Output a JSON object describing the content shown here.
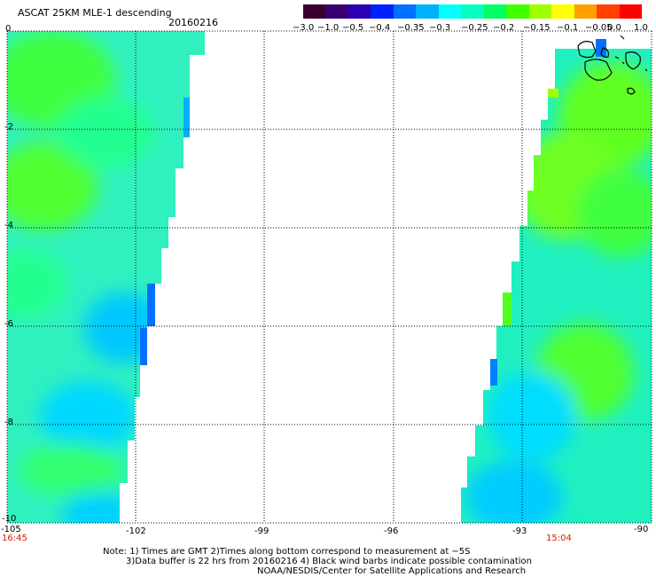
{
  "header": {
    "title": "ASCAT 25KM MLE-1 descending",
    "date": "20160216"
  },
  "colorbar": {
    "colors": [
      "#3a0030",
      "#3a0070",
      "#2a00b0",
      "#0020ff",
      "#0070ff",
      "#00b0ff",
      "#00ffff",
      "#00ffc0",
      "#00ff60",
      "#40ff00",
      "#a0ff00",
      "#ffff00",
      "#ffa000",
      "#ff4000",
      "#ff0000"
    ],
    "tick_labels": [
      "−3.0",
      "−1.0",
      "−0.5",
      "−0.4",
      "−0.35",
      "−0.3",
      "−0.25",
      "−0.2",
      "−0.15",
      "−0.1",
      "−0.05",
      "0.0",
      "1.0"
    ]
  },
  "axes": {
    "x_ticks": [
      "-105",
      "-102",
      "-99",
      "-96",
      "-93",
      "-90"
    ],
    "y_ticks": [
      "0",
      "-2",
      "-4",
      "-6",
      "-8",
      "-10"
    ]
  },
  "times": {
    "left": "16:45",
    "right": "15:04"
  },
  "notes": {
    "line1": "Note: 1) Times are GMT 2)Times along bottom correspond to measurement at −5S",
    "line2": "3)Data buffer is 22 hrs from 20160216 4) Black wind barbs indicate possible contamination",
    "line3": "NOAA/NESDIS/Center for Satellite Applications and Research"
  }
}
